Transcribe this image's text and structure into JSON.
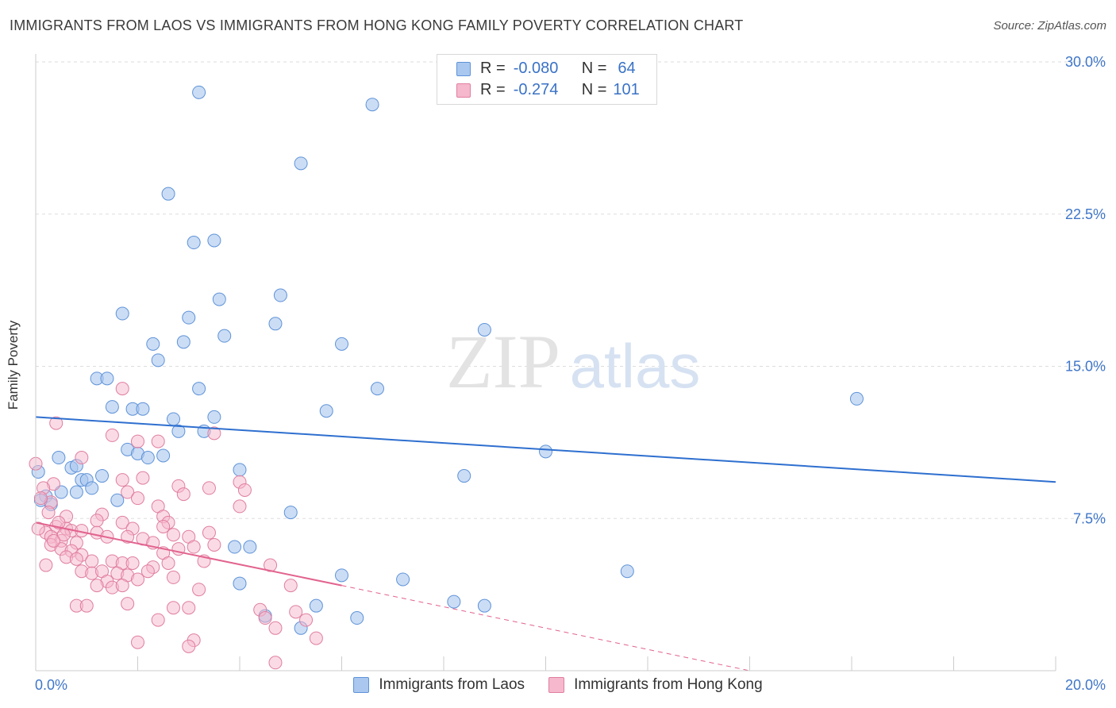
{
  "header": {
    "title": "IMMIGRANTS FROM LAOS VS IMMIGRANTS FROM HONG KONG FAMILY POVERTY CORRELATION CHART",
    "source": "Source: ZipAtlas.com"
  },
  "watermark": {
    "zip": "ZIP",
    "atlas": "atlas"
  },
  "legend": {
    "rows": [
      {
        "r_label": "R =",
        "r_value": "-0.080",
        "n_label": "N =",
        "n_value": "64"
      },
      {
        "r_label": "R =",
        "r_value": "-0.274",
        "n_label": "N =",
        "n_value": "101"
      }
    ]
  },
  "colors": {
    "laos_fill": "#a9c7ef",
    "laos_stroke": "#5f93d8",
    "laos_line": "#2e6fcf",
    "hk_fill": "#f5b8cc",
    "hk_stroke": "#e07ea0",
    "hk_line": "#e2638f",
    "axis_text": "#3f76c8",
    "grid": "#dddddd"
  },
  "chart_data": {
    "type": "scatter",
    "title": "IMMIGRANTS FROM LAOS VS IMMIGRANTS FROM HONG KONG FAMILY POVERTY CORRELATION CHART",
    "xlabel": "",
    "ylabel": "Family Poverty",
    "xlim": [
      0,
      20
    ],
    "ylim": [
      0,
      30
    ],
    "x_tick_labels": [
      "0.0%",
      "20.0%"
    ],
    "y_ticks": [
      7.5,
      15,
      22.5,
      30
    ],
    "y_tick_labels": [
      "7.5%",
      "15.0%",
      "22.5%",
      "30.0%"
    ],
    "series": [
      {
        "name": "Immigrants from Laos",
        "r": -0.08,
        "n": 64,
        "trend": {
          "x": [
            0,
            20
          ],
          "y": [
            12.5,
            9.3
          ]
        },
        "points": [
          [
            3.2,
            28.5
          ],
          [
            6.6,
            27.9
          ],
          [
            5.2,
            25.0
          ],
          [
            2.6,
            23.5
          ],
          [
            3.1,
            21.1
          ],
          [
            3.5,
            21.2
          ],
          [
            3.6,
            18.3
          ],
          [
            4.8,
            18.5
          ],
          [
            1.7,
            17.6
          ],
          [
            3.0,
            17.4
          ],
          [
            4.7,
            17.1
          ],
          [
            8.8,
            16.8
          ],
          [
            2.3,
            16.1
          ],
          [
            2.9,
            16.2
          ],
          [
            3.7,
            16.5
          ],
          [
            6.0,
            16.1
          ],
          [
            2.4,
            15.3
          ],
          [
            1.2,
            14.4
          ],
          [
            1.4,
            14.4
          ],
          [
            3.2,
            13.9
          ],
          [
            6.7,
            13.9
          ],
          [
            16.1,
            13.4
          ],
          [
            1.5,
            13.0
          ],
          [
            1.9,
            12.9
          ],
          [
            2.1,
            12.9
          ],
          [
            3.5,
            12.5
          ],
          [
            5.7,
            12.8
          ],
          [
            2.7,
            12.4
          ],
          [
            2.8,
            11.8
          ],
          [
            3.3,
            11.8
          ],
          [
            1.8,
            10.9
          ],
          [
            2.0,
            10.7
          ],
          [
            2.2,
            10.5
          ],
          [
            2.5,
            10.6
          ],
          [
            10.0,
            10.8
          ],
          [
            0.45,
            10.5
          ],
          [
            0.7,
            10.0
          ],
          [
            0.8,
            10.1
          ],
          [
            0.05,
            9.8
          ],
          [
            1.3,
            9.6
          ],
          [
            0.9,
            9.4
          ],
          [
            1.0,
            9.4
          ],
          [
            8.4,
            9.6
          ],
          [
            4.0,
            9.9
          ],
          [
            1.1,
            9.0
          ],
          [
            0.5,
            8.8
          ],
          [
            0.8,
            8.8
          ],
          [
            0.2,
            8.6
          ],
          [
            0.3,
            8.2
          ],
          [
            1.6,
            8.4
          ],
          [
            5.0,
            7.8
          ],
          [
            0.1,
            8.4
          ],
          [
            3.9,
            6.1
          ],
          [
            4.2,
            6.1
          ],
          [
            4.0,
            4.3
          ],
          [
            6.0,
            4.7
          ],
          [
            7.2,
            4.5
          ],
          [
            11.6,
            4.9
          ],
          [
            5.5,
            3.2
          ],
          [
            8.2,
            3.4
          ],
          [
            8.8,
            3.2
          ],
          [
            4.5,
            2.7
          ],
          [
            6.3,
            2.6
          ],
          [
            5.2,
            2.1
          ]
        ]
      },
      {
        "name": "Immigrants from Hong Kong",
        "r": -0.274,
        "n": 101,
        "trend": {
          "x": [
            0,
            6
          ],
          "y": [
            7.3,
            4.2
          ]
        },
        "trend_extension": {
          "x": [
            6,
            14
          ],
          "y": [
            4.2,
            0.0
          ]
        },
        "points": [
          [
            0.0,
            10.2
          ],
          [
            0.4,
            12.2
          ],
          [
            1.7,
            13.9
          ],
          [
            1.5,
            11.6
          ],
          [
            2.0,
            11.3
          ],
          [
            2.4,
            11.3
          ],
          [
            3.5,
            11.7
          ],
          [
            0.9,
            10.5
          ],
          [
            1.7,
            9.4
          ],
          [
            2.1,
            9.5
          ],
          [
            2.8,
            9.1
          ],
          [
            3.4,
            9.0
          ],
          [
            4.0,
            9.3
          ],
          [
            4.1,
            8.9
          ],
          [
            2.9,
            8.7
          ],
          [
            1.8,
            8.8
          ],
          [
            2.0,
            8.5
          ],
          [
            0.3,
            8.3
          ],
          [
            4.0,
            8.1
          ],
          [
            2.4,
            8.1
          ],
          [
            1.3,
            7.7
          ],
          [
            2.5,
            7.6
          ],
          [
            0.6,
            7.6
          ],
          [
            1.2,
            7.4
          ],
          [
            1.7,
            7.3
          ],
          [
            1.9,
            7.0
          ],
          [
            2.6,
            7.3
          ],
          [
            2.5,
            7.1
          ],
          [
            0.4,
            7.1
          ],
          [
            0.6,
            7.0
          ],
          [
            0.7,
            6.9
          ],
          [
            0.9,
            6.9
          ],
          [
            1.2,
            6.8
          ],
          [
            1.4,
            6.6
          ],
          [
            0.2,
            6.8
          ],
          [
            0.3,
            6.6
          ],
          [
            0.5,
            6.4
          ],
          [
            0.8,
            6.3
          ],
          [
            1.8,
            6.6
          ],
          [
            2.1,
            6.5
          ],
          [
            2.3,
            6.3
          ],
          [
            2.7,
            6.7
          ],
          [
            3.0,
            6.6
          ],
          [
            3.4,
            6.8
          ],
          [
            3.5,
            6.2
          ],
          [
            2.5,
            5.8
          ],
          [
            2.8,
            6.0
          ],
          [
            3.1,
            6.1
          ],
          [
            0.3,
            6.2
          ],
          [
            0.5,
            6.0
          ],
          [
            0.7,
            5.9
          ],
          [
            0.9,
            5.7
          ],
          [
            0.6,
            5.6
          ],
          [
            0.8,
            5.5
          ],
          [
            1.1,
            5.4
          ],
          [
            1.5,
            5.4
          ],
          [
            1.7,
            5.3
          ],
          [
            1.9,
            5.3
          ],
          [
            2.3,
            5.1
          ],
          [
            2.6,
            5.3
          ],
          [
            3.3,
            5.4
          ],
          [
            4.6,
            5.2
          ],
          [
            0.2,
            5.2
          ],
          [
            0.9,
            4.9
          ],
          [
            1.1,
            4.8
          ],
          [
            1.3,
            4.9
          ],
          [
            1.6,
            4.8
          ],
          [
            1.8,
            4.7
          ],
          [
            2.2,
            4.9
          ],
          [
            2.7,
            4.6
          ],
          [
            2.0,
            4.5
          ],
          [
            1.4,
            4.4
          ],
          [
            1.2,
            4.2
          ],
          [
            1.5,
            4.1
          ],
          [
            1.7,
            4.2
          ],
          [
            3.2,
            4.0
          ],
          [
            5.0,
            4.2
          ],
          [
            0.8,
            3.2
          ],
          [
            1.0,
            3.2
          ],
          [
            1.8,
            3.3
          ],
          [
            2.7,
            3.1
          ],
          [
            3.0,
            3.1
          ],
          [
            4.4,
            3.0
          ],
          [
            5.1,
            2.9
          ],
          [
            2.4,
            2.5
          ],
          [
            4.5,
            2.6
          ],
          [
            5.3,
            2.5
          ],
          [
            4.7,
            2.1
          ],
          [
            5.5,
            1.6
          ],
          [
            2.0,
            1.4
          ],
          [
            3.1,
            1.5
          ],
          [
            3.0,
            1.2
          ],
          [
            4.7,
            0.4
          ],
          [
            0.35,
            9.2
          ],
          [
            0.15,
            9.0
          ],
          [
            0.1,
            8.5
          ],
          [
            0.25,
            7.8
          ],
          [
            0.45,
            7.3
          ],
          [
            0.55,
            6.7
          ],
          [
            0.35,
            6.4
          ],
          [
            0.05,
            7.0
          ]
        ]
      }
    ],
    "legend_position": "top-center"
  }
}
